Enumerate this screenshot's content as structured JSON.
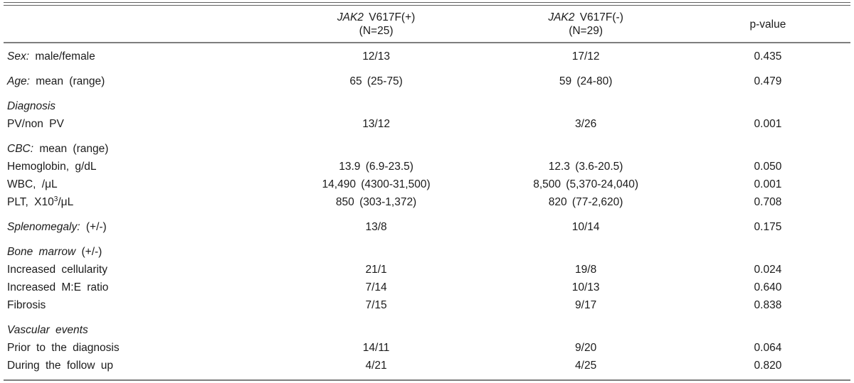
{
  "header": {
    "col2": {
      "gene": "JAK2",
      "rest": " V617F(+)",
      "n": "(N=25)"
    },
    "col3": {
      "gene": "JAK2",
      "rest": " V617F(-)",
      "n": "(N=29)"
    },
    "pvalue_label": "p-value"
  },
  "rows": [
    {
      "i": "Sex:",
      "r": " male/female",
      "v1": "12/13",
      "v2": "17/12",
      "p": "0.435"
    },
    {
      "i": "Age:",
      "r": " mean (range)",
      "v1": "65 (25-75)",
      "v2": "59 (24-80)",
      "p": "0.479"
    },
    {
      "i": "Diagnosis",
      "r": "",
      "v1": "",
      "v2": "",
      "p": ""
    },
    {
      "i": "",
      "r": "PV/non PV",
      "v1": "13/12",
      "v2": "3/26",
      "p": "0.001"
    },
    {
      "i": "CBC:",
      "r": " mean (range)",
      "v1": "",
      "v2": "",
      "p": ""
    },
    {
      "i": "",
      "r": "Hemoglobin, g/dL",
      "v1": "13.9 (6.9-23.5)",
      "v2": "12.3 (3.6-20.5)",
      "p": "0.050"
    },
    {
      "i": "",
      "r": "WBC, /μL",
      "v1": "14,490 (4300-31,500)",
      "v2": "8,500 (5,370-24,040)",
      "p": "0.001"
    },
    {
      "i": "",
      "r": "PLT, X10",
      "sup": "3",
      "post": "/μL",
      "v1": "850 (303-1,372)",
      "v2": "820 (77-2,620)",
      "p": "0.708"
    },
    {
      "i": "Splenomegaly:",
      "r": " (+/-)",
      "v1": "13/8",
      "v2": "10/14",
      "p": "0.175"
    },
    {
      "i": "Bone marrow",
      "r": " (+/-)",
      "v1": "",
      "v2": "",
      "p": ""
    },
    {
      "i": "",
      "r": "Increased cellularity",
      "v1": "21/1",
      "v2": "19/8",
      "p": "0.024"
    },
    {
      "i": "",
      "r": "Increased M:E ratio",
      "v1": "7/14",
      "v2": "10/13",
      "p": "0.640"
    },
    {
      "i": "",
      "r": "Fibrosis",
      "v1": "7/15",
      "v2": "9/17",
      "p": "0.838"
    },
    {
      "i": "Vascular events",
      "r": "",
      "v1": "",
      "v2": "",
      "p": ""
    },
    {
      "i": "",
      "r": "Prior to the diagnosis",
      "v1": "14/11",
      "v2": "9/20",
      "p": "0.064"
    },
    {
      "i": "",
      "r": "During the follow up",
      "v1": "4/21",
      "v2": "4/25",
      "p": "0.820"
    }
  ]
}
